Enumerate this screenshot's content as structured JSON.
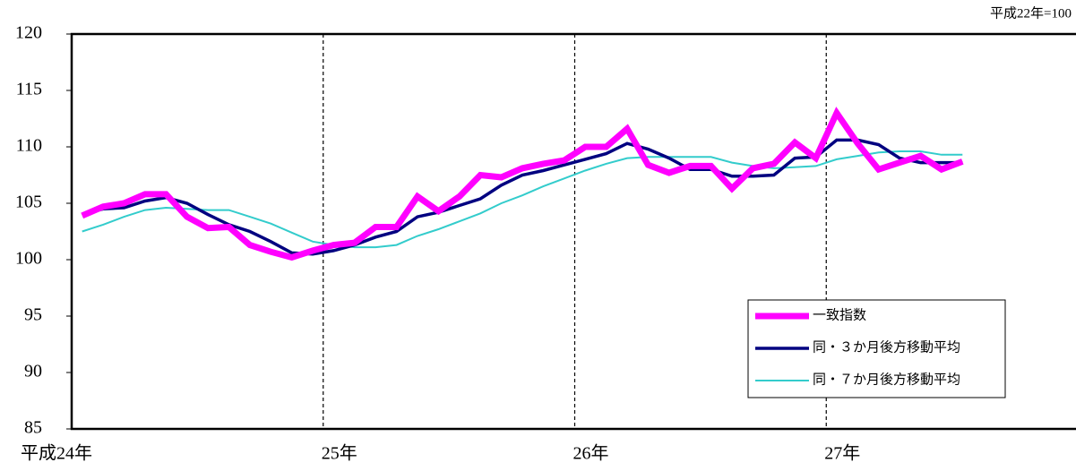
{
  "chart_data": {
    "type": "line",
    "note": "平成22年=100",
    "categories": [
      "平成24年",
      null,
      null,
      null,
      null,
      null,
      null,
      null,
      null,
      null,
      null,
      null,
      "25年",
      null,
      null,
      null,
      null,
      null,
      null,
      null,
      null,
      null,
      null,
      null,
      "26年",
      null,
      null,
      null,
      null,
      null,
      null,
      null,
      null,
      null,
      null,
      null,
      "27年",
      null,
      null,
      null,
      null,
      null,
      null,
      null,
      null,
      null,
      null,
      null
    ],
    "series": [
      {
        "name": "一致指数",
        "color": "#ff00ff",
        "width": 7,
        "values": [
          103.9,
          104.7,
          105.0,
          105.8,
          105.8,
          103.8,
          102.8,
          102.9,
          101.3,
          100.7,
          100.2,
          100.8,
          101.3,
          101.5,
          102.9,
          102.9,
          105.6,
          104.3,
          105.6,
          107.5,
          107.3,
          108.1,
          108.5,
          108.8,
          110.0,
          110.0,
          111.6,
          108.4,
          107.7,
          108.3,
          108.3,
          106.3,
          108.1,
          108.5,
          110.4,
          109.0,
          113.0,
          110.3,
          108.0,
          108.6,
          109.2,
          108.0,
          108.7,
          null,
          null,
          null,
          null,
          null
        ]
      },
      {
        "name": "同・３か月後方移動平均",
        "color": "#000080",
        "width": 3.5,
        "values": [
          104.0,
          104.5,
          104.6,
          105.2,
          105.5,
          105.0,
          104.0,
          103.1,
          102.5,
          101.6,
          100.6,
          100.5,
          100.8,
          101.3,
          102.0,
          102.5,
          103.8,
          104.2,
          104.8,
          105.4,
          106.6,
          107.5,
          107.9,
          108.4,
          108.9,
          109.4,
          110.3,
          109.8,
          109.0,
          108.0,
          108.0,
          107.4,
          107.4,
          107.5,
          109.0,
          109.1,
          110.6,
          110.6,
          110.2,
          109.0,
          108.6,
          108.6,
          108.6,
          null,
          null,
          null,
          null,
          null
        ]
      },
      {
        "name": "同・７か月後方移動平均",
        "color": "#33cccc",
        "width": 2,
        "values": [
          102.5,
          103.1,
          103.8,
          104.4,
          104.6,
          104.5,
          104.4,
          104.4,
          103.8,
          103.2,
          102.4,
          101.6,
          101.3,
          101.1,
          101.1,
          101.3,
          102.1,
          102.7,
          103.4,
          104.1,
          105.0,
          105.7,
          106.5,
          107.2,
          107.9,
          108.5,
          109.0,
          109.1,
          109.1,
          109.1,
          109.1,
          108.6,
          108.3,
          108.1,
          108.2,
          108.3,
          108.9,
          109.2,
          109.5,
          109.6,
          109.6,
          109.3,
          109.3,
          null,
          null,
          null,
          null,
          null
        ]
      }
    ],
    "ylim": [
      85,
      120
    ],
    "yticks": [
      85,
      90,
      95,
      100,
      105,
      110,
      115,
      120
    ],
    "legend": "bottom-right"
  }
}
